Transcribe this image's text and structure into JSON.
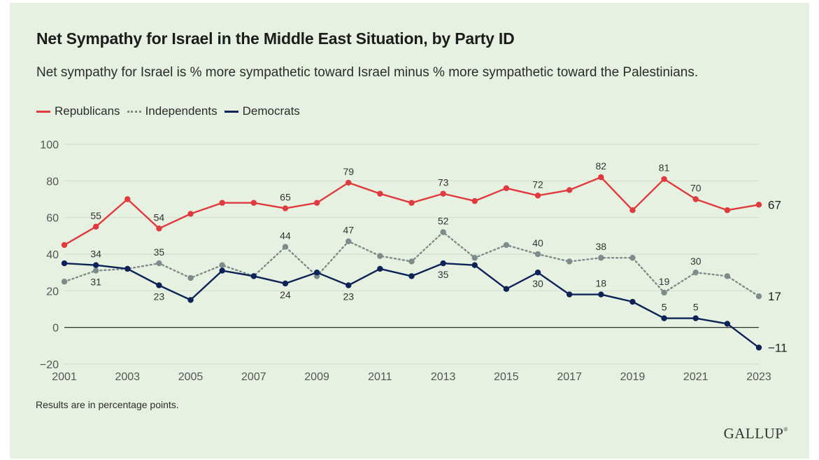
{
  "header": {
    "title": "Net Sympathy for Israel in the Middle East Situation, by Party ID",
    "subtitle": "Net sympathy for Israel is % more sympathetic toward Israel minus % more sympathetic toward the Palestinians."
  },
  "footnote": "Results are in percentage points.",
  "logo": {
    "text": "GALLUP",
    "mark": "®"
  },
  "colors": {
    "background": "#e6f1e1",
    "republicans": "#e03a3e",
    "independents": "#7d8b8a",
    "democrats": "#0d2257",
    "grid": "#d3dccf",
    "zero_line": "#1a1a1a",
    "tick_text": "#555555",
    "label_text": "#333333"
  },
  "chart_data": {
    "type": "line",
    "title": "Net Sympathy for Israel in the Middle East Situation, by Party ID",
    "subtitle": "Net sympathy for Israel is % more sympathetic toward Israel minus % more sympathetic toward the Palestinians.",
    "xlabel": "",
    "ylabel": "",
    "x": [
      2001,
      2002,
      2003,
      2004,
      2005,
      2006,
      2007,
      2008,
      2009,
      2010,
      2011,
      2012,
      2013,
      2014,
      2015,
      2016,
      2017,
      2018,
      2019,
      2020,
      2021,
      2022,
      2023
    ],
    "x_tick_labels": [
      "2001",
      "2003",
      "2005",
      "2007",
      "2009",
      "2011",
      "2013",
      "2015",
      "2017",
      "2019",
      "2021",
      "2023"
    ],
    "ylim": [
      -20,
      100
    ],
    "y_ticks": [
      -20,
      0,
      20,
      40,
      60,
      80,
      100
    ],
    "y_tick_labels": [
      "−20",
      "0",
      "20",
      "40",
      "60",
      "80",
      "100"
    ],
    "grid": true,
    "legend_position": "top-left",
    "series": [
      {
        "name": "Republicans",
        "style": "solid",
        "values": [
          45,
          55,
          70,
          54,
          62,
          68,
          68,
          65,
          68,
          79,
          73,
          68,
          73,
          69,
          76,
          72,
          75,
          82,
          64,
          81,
          70,
          64,
          67
        ],
        "labels": [
          {
            "x": 2002,
            "text": "55",
            "pos": "above"
          },
          {
            "x": 2004,
            "text": "54",
            "pos": "above"
          },
          {
            "x": 2008,
            "text": "65",
            "pos": "above"
          },
          {
            "x": 2010,
            "text": "79",
            "pos": "above"
          },
          {
            "x": 2013,
            "text": "73",
            "pos": "above"
          },
          {
            "x": 2016,
            "text": "72",
            "pos": "above"
          },
          {
            "x": 2018,
            "text": "82",
            "pos": "above"
          },
          {
            "x": 2020,
            "text": "81",
            "pos": "above"
          },
          {
            "x": 2021,
            "text": "70",
            "pos": "above"
          },
          {
            "x": 2023,
            "text": "67",
            "pos": "end"
          }
        ]
      },
      {
        "name": "Independents",
        "style": "dotted",
        "values": [
          25,
          31,
          32,
          35,
          27,
          34,
          28,
          44,
          28,
          47,
          39,
          36,
          52,
          38,
          45,
          40,
          36,
          38,
          38,
          19,
          30,
          28,
          17
        ],
        "labels": [
          {
            "x": 2002,
            "text": "31",
            "pos": "below"
          },
          {
            "x": 2004,
            "text": "35",
            "pos": "above"
          },
          {
            "x": 2008,
            "text": "44",
            "pos": "above"
          },
          {
            "x": 2010,
            "text": "47",
            "pos": "above"
          },
          {
            "x": 2013,
            "text": "52",
            "pos": "above"
          },
          {
            "x": 2016,
            "text": "40",
            "pos": "above"
          },
          {
            "x": 2018,
            "text": "38",
            "pos": "above"
          },
          {
            "x": 2020,
            "text": "19",
            "pos": "above"
          },
          {
            "x": 2021,
            "text": "30",
            "pos": "above"
          },
          {
            "x": 2023,
            "text": "17",
            "pos": "end"
          }
        ]
      },
      {
        "name": "Democrats",
        "style": "solid",
        "values": [
          35,
          34,
          32,
          23,
          15,
          31,
          28,
          24,
          30,
          23,
          32,
          28,
          35,
          34,
          21,
          30,
          18,
          18,
          14,
          5,
          5,
          2,
          -11
        ],
        "labels": [
          {
            "x": 2002,
            "text": "34",
            "pos": "above"
          },
          {
            "x": 2004,
            "text": "23",
            "pos": "below"
          },
          {
            "x": 2008,
            "text": "24",
            "pos": "below"
          },
          {
            "x": 2010,
            "text": "23",
            "pos": "below"
          },
          {
            "x": 2013,
            "text": "35",
            "pos": "below"
          },
          {
            "x": 2016,
            "text": "30",
            "pos": "below"
          },
          {
            "x": 2018,
            "text": "18",
            "pos": "above"
          },
          {
            "x": 2020,
            "text": "5",
            "pos": "above"
          },
          {
            "x": 2021,
            "text": "5",
            "pos": "above"
          },
          {
            "x": 2023,
            "text": "−11",
            "pos": "end"
          }
        ]
      }
    ]
  }
}
